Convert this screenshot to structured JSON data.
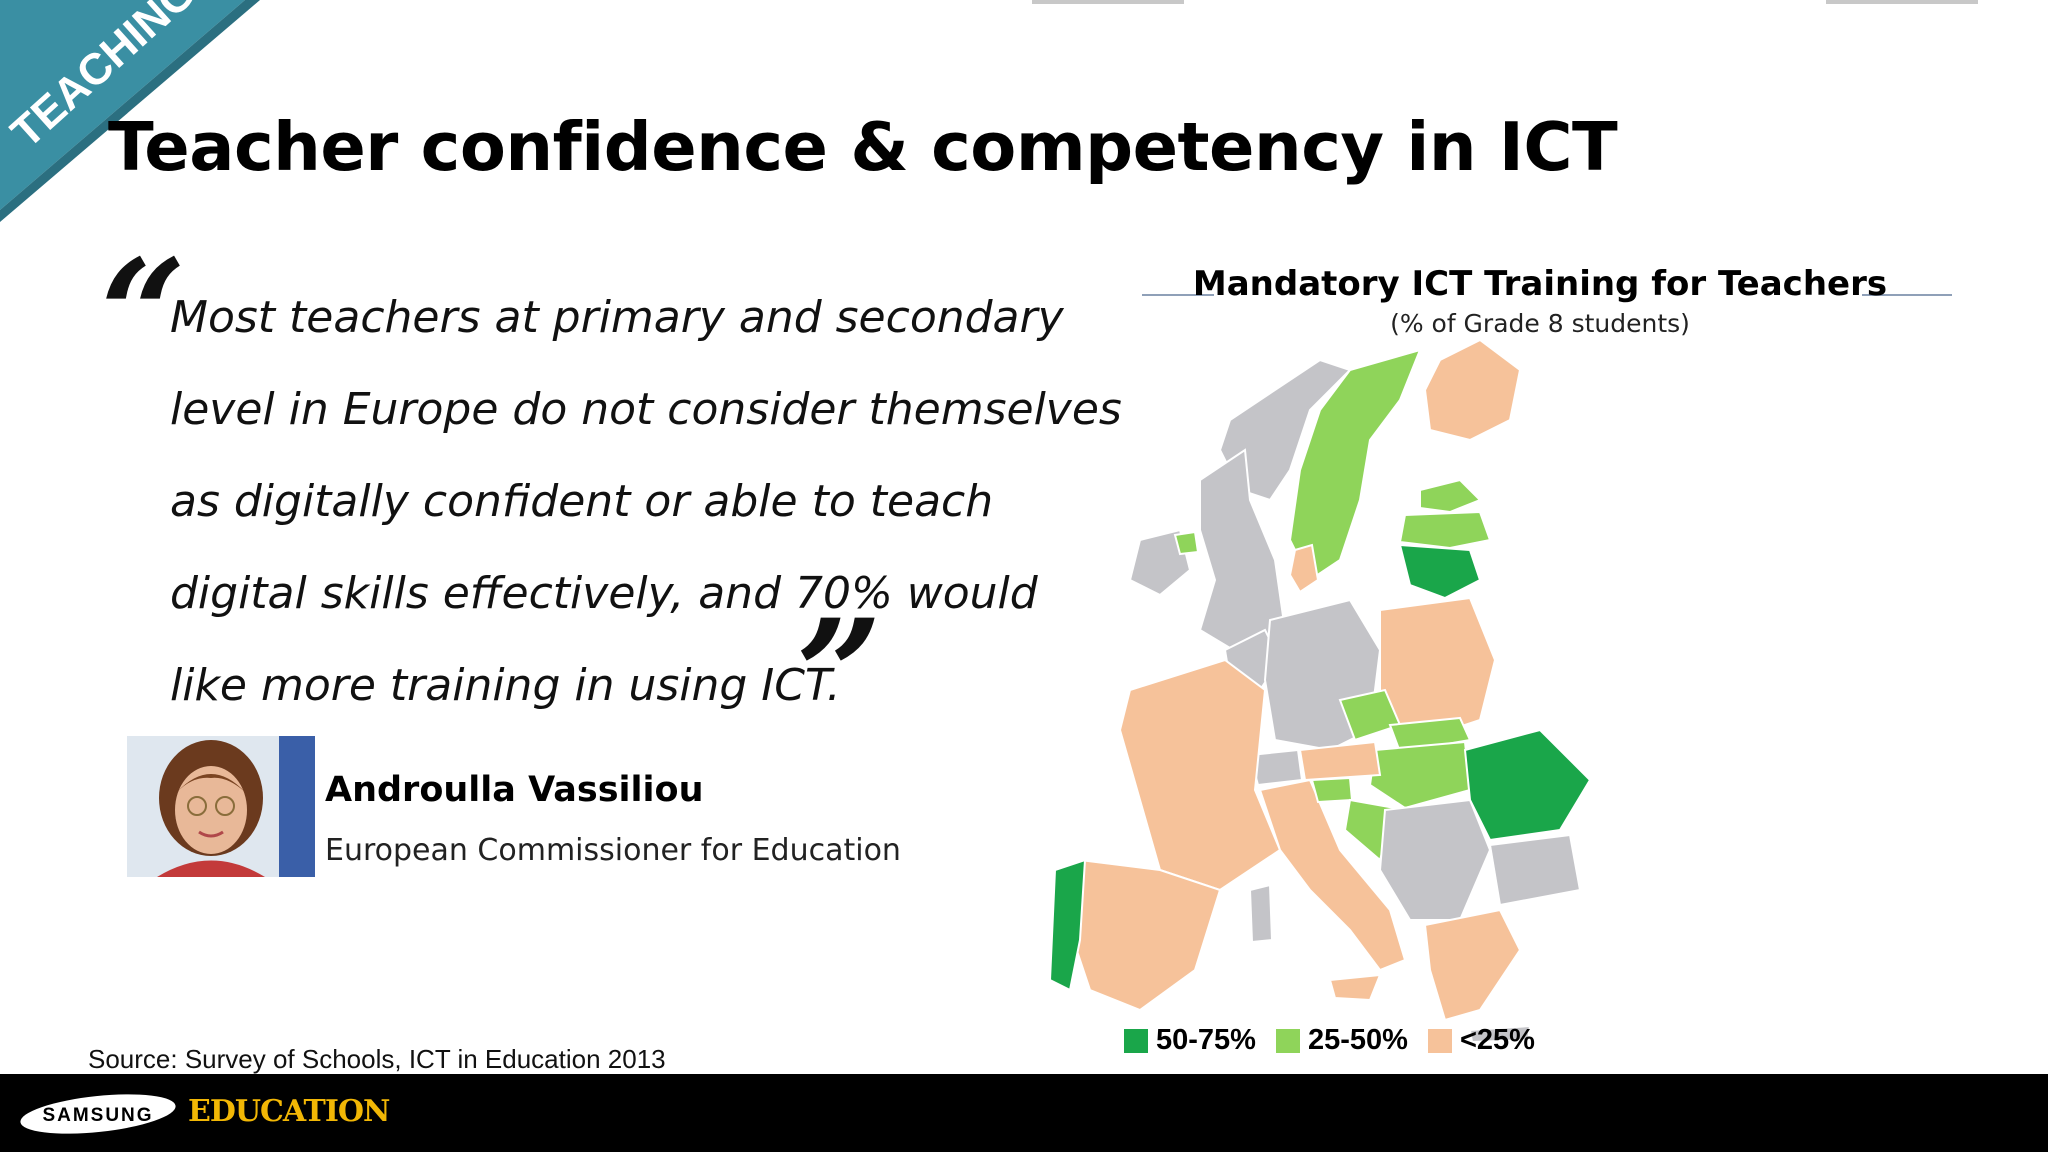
{
  "corner_banner": {
    "label": "TEACHING",
    "color": "#3a8fa3"
  },
  "title": "Teacher confidence & competency in ICT",
  "quote": {
    "open_mark": "“",
    "close_mark": "”",
    "lines": [
      "Most teachers at primary and secondary",
      "level in Europe do not consider themselves",
      "as digitally confident or able to teach",
      "digital skills effectively, and 70% would",
      "like more training in using ICT."
    ]
  },
  "person": {
    "name": "Androulla Vassiliou",
    "role": "European Commissioner for Education"
  },
  "map": {
    "title": "Mandatory ICT Training for Teachers",
    "subtitle": "(% of Grade 8 students)",
    "legend": [
      {
        "label": "50-75%",
        "color": "#1aa64a"
      },
      {
        "label": "25-50%",
        "color": "#8fd45a"
      },
      {
        "label": "<25%",
        "color": "#f6c29a"
      }
    ],
    "no_data_color": "#c4c4c8"
  },
  "source": "Source: Survey of Schools, ICT in Education 2013",
  "footer": {
    "brand": "SAMSUNG",
    "education": "EDUCATION"
  }
}
